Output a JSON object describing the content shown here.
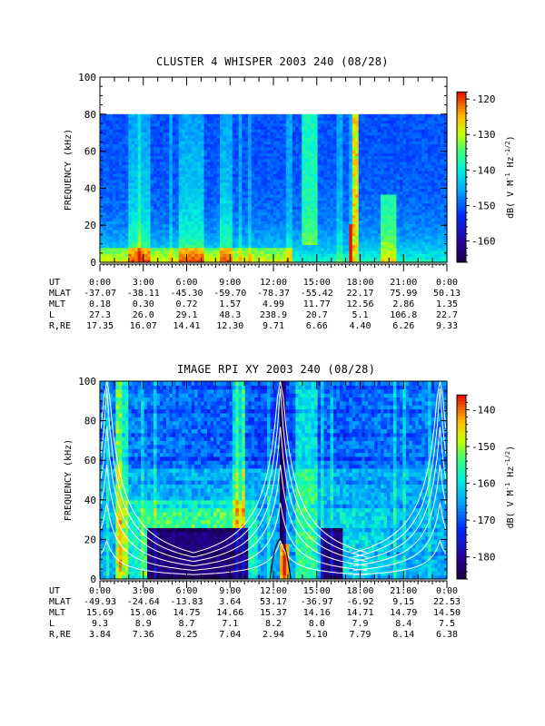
{
  "chart_data": [
    {
      "type": "heatmap",
      "title": "CLUSTER 4 WHISPER 2003 240 (08/28)",
      "ylabel": "FREQUENCY (kHz)",
      "ylim": [
        0,
        100
      ],
      "yticks": [
        "0",
        "20",
        "40",
        "60",
        "80",
        "100"
      ],
      "data_top_khz": 80,
      "xticks": [
        "0:00",
        "3:00",
        "6:00",
        "9:00",
        "12:00",
        "15:00",
        "18:00",
        "21:00",
        "0:00"
      ],
      "colorbar": {
        "label": "dB( V M⁻¹ Hz⁻¹ᐟ²)",
        "label_parts": [
          "dB( V M",
          "-1",
          " Hz",
          "-1/2",
          ")"
        ],
        "range": [
          -166,
          -118
        ],
        "ticks": [
          "-120",
          "-130",
          "-140",
          "-150",
          "-160"
        ],
        "tick_values": [
          -120,
          -130,
          -140,
          -150,
          -160
        ]
      },
      "ephemeris": {
        "UT": [
          "0:00",
          "3:00",
          "6:00",
          "9:00",
          "12:00",
          "15:00",
          "18:00",
          "21:00",
          "0:00"
        ],
        "MLAT": [
          "-37.07",
          "-38.11",
          "-45.30",
          "-59.70",
          "-78.37",
          "-55.42",
          "22.17",
          "75.99",
          "50.13"
        ],
        "MLT": [
          "0.18",
          "0.30",
          "0.72",
          "1.57",
          "4.99",
          "11.77",
          "12.56",
          "2.86",
          "1.35"
        ],
        "L": [
          "27.3",
          "26.0",
          "29.1",
          "48.3",
          "238.9",
          "20.7",
          "5.1",
          "106.8",
          "22.7"
        ],
        "R,RE": [
          "17.35",
          "16.07",
          "14.41",
          "12.30",
          "9.71",
          "6.66",
          "4.40",
          "6.26",
          "9.33"
        ]
      }
    },
    {
      "type": "heatmap",
      "title": "IMAGE RPI XY 2003 240 (08/28)",
      "ylabel": "FREQUENCY (kHz)",
      "ylim": [
        0,
        100
      ],
      "yticks": [
        "0",
        "20",
        "40",
        "60",
        "80",
        "100"
      ],
      "xticks": [
        "0:00",
        "3:00",
        "6:00",
        "9:00",
        "12:00",
        "15:00",
        "18:00",
        "21:00",
        "0:00"
      ],
      "colorbar": {
        "label": "dB( V M⁻¹ Hz⁻¹ᐟ²)",
        "label_parts": [
          "dB( V M",
          "-1",
          " Hz",
          "-1/2",
          ")"
        ],
        "range": [
          -186,
          -136
        ],
        "ticks": [
          "-140",
          "-150",
          "-160",
          "-170",
          "-180"
        ],
        "tick_values": [
          -140,
          -150,
          -160,
          -170,
          -180
        ]
      },
      "ephemeris": {
        "UT": [
          "0:00",
          "3:00",
          "6:00",
          "9:00",
          "12:00",
          "15:00",
          "18:00",
          "21:00",
          "0:00"
        ],
        "MLAT": [
          "-49.93",
          "-24.64",
          "-13.83",
          "3.64",
          "53.17",
          "-36.97",
          "-6.92",
          "9.15",
          "22.53"
        ],
        "MLT": [
          "15.69",
          "15.06",
          "14.75",
          "14.66",
          "15.37",
          "14.16",
          "14.71",
          "14.79",
          "14.50"
        ],
        "L": [
          "9.3",
          "8.9",
          "8.7",
          "7.1",
          "8.2",
          "8.0",
          "7.9",
          "8.4",
          "7.5"
        ],
        "R,RE": [
          "3.84",
          "7.36",
          "8.25",
          "7.04",
          "2.94",
          "5.10",
          "7.79",
          "8.14",
          "6.38"
        ]
      }
    }
  ]
}
